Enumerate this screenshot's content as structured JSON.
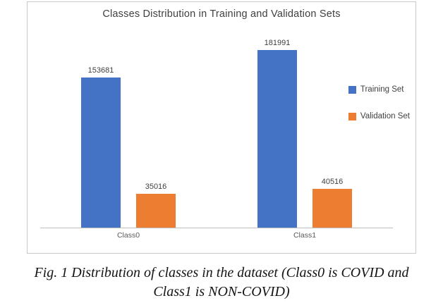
{
  "chart_data": {
    "type": "bar",
    "title": "Classes Distribution in Training and Validation Sets",
    "categories": [
      "Class0",
      "Class1"
    ],
    "series": [
      {
        "name": "Training Set",
        "color": "#4472C4",
        "values": [
          153681,
          181991
        ]
      },
      {
        "name": "Validation Set",
        "color": "#ED7D31",
        "values": [
          35016,
          40516
        ]
      }
    ],
    "xlabel": "",
    "ylabel": "",
    "ylim": [
      0,
      200000
    ],
    "grid": false,
    "legend_position": "right",
    "data_labels": true
  },
  "caption": {
    "line1": "Fig. 1 Distribution of classes in the dataset (Class0 is COVID and",
    "line2": "Class1 is NON-COVID)"
  }
}
